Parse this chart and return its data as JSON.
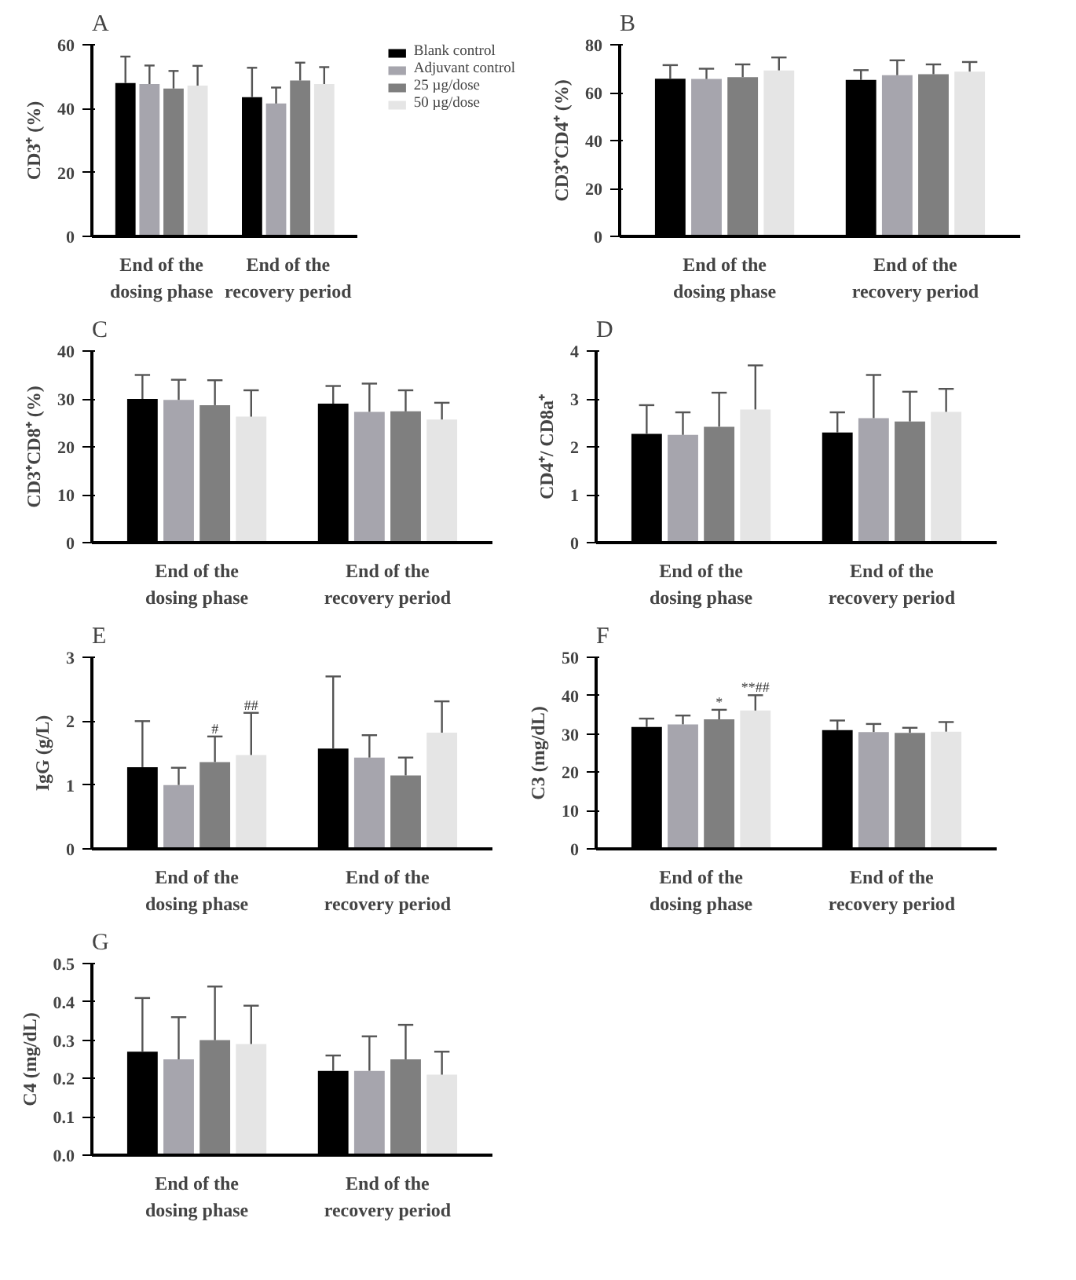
{
  "chart_data": [
    {
      "type": "bar",
      "title": "A",
      "ylabel": "CD3⁺ (%)",
      "categories": [
        "End of the\ndosing phase",
        "End of the\nrecovery period"
      ],
      "ylim": [
        0,
        60
      ],
      "yticks": [
        0,
        20,
        40,
        60
      ],
      "legend": "right",
      "series": [
        {
          "name": "Blank control",
          "color": "#000000",
          "values": [
            48,
            43.6
          ],
          "errors": [
            [
              48,
              56.3
            ],
            [
              43.6,
              52.8
            ]
          ]
        },
        {
          "name": "Adjuvant control",
          "color": "#a6a5ad",
          "values": [
            47.7,
            41.6
          ],
          "errors": [
            [
              47.7,
              53.5
            ],
            [
              41.6,
              46.6
            ]
          ]
        },
        {
          "name": "25 µg/dose",
          "color": "#7f7f7f",
          "values": [
            46.3,
            48.8
          ],
          "errors": [
            [
              46.3,
              51.8
            ],
            [
              48.8,
              54.4
            ]
          ]
        },
        {
          "name": "50 µg/dose",
          "color": "#e5e5e5",
          "values": [
            47.2,
            47.7
          ],
          "errors": [
            [
              47.2,
              53.4
            ],
            [
              47.7,
              53
            ]
          ]
        }
      ]
    },
    {
      "type": "bar",
      "title": "B",
      "ylabel": "CD3⁺CD4⁺ (%)",
      "categories": [
        "End of the\ndosing phase",
        "End of the\nrecovery period"
      ],
      "ylim": [
        0,
        80
      ],
      "yticks": [
        0,
        20,
        40,
        60,
        80
      ],
      "series": [
        {
          "color": "#000000",
          "values": [
            65.8,
            65.3
          ],
          "errors": [
            [
              65.8,
              71.5
            ],
            [
              65.3,
              69.4
            ]
          ]
        },
        {
          "color": "#a6a5ad",
          "values": [
            65.7,
            67.3
          ],
          "errors": [
            [
              65.7,
              70
            ],
            [
              67.3,
              73.5
            ]
          ]
        },
        {
          "color": "#7f7f7f",
          "values": [
            66.5,
            67.7
          ],
          "errors": [
            [
              66.5,
              71.8
            ],
            [
              67.7,
              71.8
            ]
          ]
        },
        {
          "color": "#e5e5e5",
          "values": [
            69.3,
            68.8
          ],
          "errors": [
            [
              69.3,
              74.7
            ],
            [
              68.8,
              72.8
            ]
          ]
        }
      ]
    },
    {
      "type": "bar",
      "title": "C",
      "ylabel": "CD3⁺CD8⁺ (%)",
      "categories": [
        "End of the\ndosing phase",
        "End of the\nrecovery period"
      ],
      "ylim": [
        0,
        40
      ],
      "yticks": [
        0,
        10,
        20,
        30,
        40
      ],
      "series": [
        {
          "color": "#000000",
          "values": [
            30,
            29
          ],
          "errors": [
            [
              30,
              35
            ],
            [
              29,
              32.7
            ]
          ]
        },
        {
          "color": "#a6a5ad",
          "values": [
            29.8,
            27.3
          ],
          "errors": [
            [
              29.8,
              34
            ],
            [
              27.3,
              33.2
            ]
          ]
        },
        {
          "color": "#7f7f7f",
          "values": [
            28.7,
            27.4
          ],
          "errors": [
            [
              28.7,
              33.9
            ],
            [
              27.4,
              31.8
            ]
          ]
        },
        {
          "color": "#e5e5e5",
          "values": [
            26.3,
            25.7
          ],
          "errors": [
            [
              26.3,
              31.8
            ],
            [
              25.7,
              29.2
            ]
          ]
        }
      ]
    },
    {
      "type": "bar",
      "title": "D",
      "ylabel": "CD4⁺/ CD8a⁺",
      "categories": [
        "End of the\ndosing phase",
        "End of the\nrecovery period"
      ],
      "ylim": [
        0,
        4
      ],
      "yticks": [
        0,
        1,
        2,
        3,
        4
      ],
      "series": [
        {
          "color": "#000000",
          "values": [
            2.27,
            2.3
          ],
          "errors": [
            [
              2.27,
              2.87
            ],
            [
              2.3,
              2.72
            ]
          ]
        },
        {
          "color": "#a6a5ad",
          "values": [
            2.25,
            2.6
          ],
          "errors": [
            [
              2.25,
              2.72
            ],
            [
              2.6,
              3.5
            ]
          ]
        },
        {
          "color": "#7f7f7f",
          "values": [
            2.42,
            2.53
          ],
          "errors": [
            [
              2.42,
              3.13
            ],
            [
              2.53,
              3.15
            ]
          ]
        },
        {
          "color": "#e5e5e5",
          "values": [
            2.78,
            2.73
          ],
          "errors": [
            [
              2.78,
              3.7
            ],
            [
              2.73,
              3.21
            ]
          ]
        }
      ]
    },
    {
      "type": "bar",
      "title": "E",
      "ylabel": "IgG (g/L)",
      "categories": [
        "End of the\ndosing phase",
        "End of the\nrecovery period"
      ],
      "ylim": [
        0,
        3
      ],
      "yticks": [
        0,
        1,
        2,
        3
      ],
      "series": [
        {
          "color": "#000000",
          "values": [
            1.28,
            1.57
          ],
          "errors": [
            [
              1.28,
              2.0
            ],
            [
              1.57,
              2.7
            ]
          ]
        },
        {
          "color": "#a6a5ad",
          "values": [
            1.0,
            1.43
          ],
          "errors": [
            [
              1.0,
              1.27
            ],
            [
              1.43,
              1.78
            ]
          ]
        },
        {
          "color": "#7f7f7f",
          "values": [
            1.36,
            1.15
          ],
          "errors": [
            [
              1.36,
              1.76
            ],
            [
              1.15,
              1.43
            ]
          ],
          "value_labels": [
            "#",
            null
          ]
        },
        {
          "color": "#e5e5e5",
          "values": [
            1.47,
            1.82
          ],
          "errors": [
            [
              1.47,
              2.13
            ],
            [
              1.82,
              2.31
            ]
          ],
          "value_labels": [
            "##",
            null
          ]
        }
      ]
    },
    {
      "type": "bar",
      "title": "F",
      "ylabel": "C3 (mg/dL)",
      "categories": [
        "End of the\ndosing phase",
        "End of the\nrecovery period"
      ],
      "ylim": [
        0,
        50
      ],
      "yticks": [
        0,
        10,
        20,
        30,
        40,
        50
      ],
      "series": [
        {
          "color": "#000000",
          "values": [
            31.8,
            31
          ],
          "errors": [
            [
              31.8,
              34
            ],
            [
              31,
              33.5
            ]
          ]
        },
        {
          "color": "#a6a5ad",
          "values": [
            32.5,
            30.5
          ],
          "errors": [
            [
              32.5,
              34.8
            ],
            [
              30.5,
              32.6
            ]
          ]
        },
        {
          "color": "#7f7f7f",
          "values": [
            33.8,
            30.3
          ],
          "errors": [
            [
              33.8,
              36.3
            ],
            [
              30.3,
              31.6
            ]
          ],
          "value_labels": [
            "*",
            null
          ]
        },
        {
          "color": "#e5e5e5",
          "values": [
            36.1,
            30.6
          ],
          "errors": [
            [
              36.1,
              40.1
            ],
            [
              30.6,
              33.1
            ]
          ],
          "value_labels": [
            "**##",
            null
          ]
        }
      ]
    },
    {
      "type": "bar",
      "title": "G",
      "ylabel": "C4 (mg/dL)",
      "categories": [
        "End of the\ndosing phase",
        "End of the\nrecovery period"
      ],
      "ylim": [
        0,
        0.5
      ],
      "yticks": [
        {
          "value": 0,
          "label": "0.0"
        },
        0.1,
        0.2,
        0.3,
        0.4,
        0.5
      ],
      "series": [
        {
          "color": "#000000",
          "values": [
            0.27,
            0.22
          ],
          "errors": [
            [
              0.27,
              0.41
            ],
            [
              0.22,
              0.26
            ]
          ]
        },
        {
          "color": "#a6a5ad",
          "values": [
            0.25,
            0.22
          ],
          "errors": [
            [
              0.25,
              0.36
            ],
            [
              0.22,
              0.31
            ]
          ]
        },
        {
          "color": "#7f7f7f",
          "values": [
            0.3,
            0.25
          ],
          "errors": [
            [
              0.3,
              0.44
            ],
            [
              0.25,
              0.34
            ]
          ]
        },
        {
          "color": "#e5e5e5",
          "values": [
            0.29,
            0.21
          ],
          "errors": [
            [
              0.29,
              0.39
            ],
            [
              0.21,
              0.27
            ]
          ]
        }
      ]
    }
  ]
}
